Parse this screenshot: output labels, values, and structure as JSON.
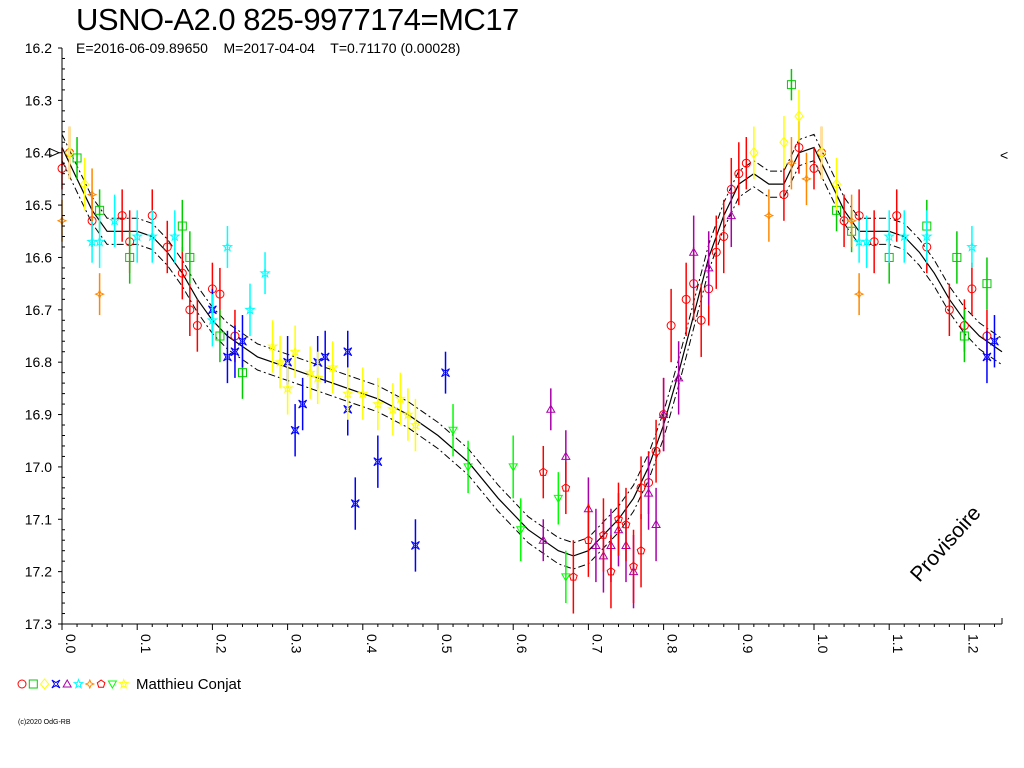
{
  "title": "USNO-A2.0 825-9977174=MC17",
  "subtitle": "E=2016-06-09.89650    M=2017-04-04    T=0.71170 (0.00028)",
  "legend": {
    "observer": "Matthieu Conjat",
    "symbols": [
      {
        "shape": "circle",
        "color": "#ff0000"
      },
      {
        "shape": "square",
        "color": "#00cc00"
      },
      {
        "shape": "diamond",
        "color": "#ffff00"
      },
      {
        "shape": "star4",
        "color": "#0000ff"
      },
      {
        "shape": "triangle",
        "color": "#aa00aa"
      },
      {
        "shape": "star",
        "color": "#00ffff"
      },
      {
        "shape": "cross",
        "color": "#ff8800"
      },
      {
        "shape": "pentagon",
        "color": "#ff0000"
      },
      {
        "shape": "triangle-down",
        "color": "#00ff00"
      },
      {
        "shape": "star",
        "color": "#ffff00"
      }
    ]
  },
  "watermark": "Provisoire",
  "copyright": "(c)2020 OdG-RB",
  "side_mark": "<",
  "chart_data": {
    "type": "scatter",
    "title": "USNO-A2.0 825-9977174=MC17",
    "x_ticks": [
      "0.0",
      "0.1",
      "0.2",
      "0.3",
      "0.4",
      "0.5",
      "0.6",
      "0.7",
      "0.8",
      "0.9",
      "1.0",
      "1.1",
      "1.2"
    ],
    "y_ticks": [
      "16.2",
      "16.3",
      "16.4",
      "16.5",
      "16.6",
      "16.7",
      "16.8",
      "16.9",
      "17.0",
      "17.1",
      "17.2",
      "17.3"
    ],
    "xlim": [
      0.0,
      1.25
    ],
    "ylim": [
      17.3,
      16.2
    ],
    "y_inverted": true,
    "fit_curve": {
      "phase": [
        0.0,
        0.02,
        0.04,
        0.06,
        0.08,
        0.1,
        0.12,
        0.14,
        0.16,
        0.18,
        0.2,
        0.22,
        0.24,
        0.26,
        0.28,
        0.3,
        0.34,
        0.38,
        0.42,
        0.46,
        0.5,
        0.54,
        0.58,
        0.62,
        0.66,
        0.68,
        0.7,
        0.72,
        0.74,
        0.76,
        0.78,
        0.8,
        0.82,
        0.84,
        0.86,
        0.88,
        0.9,
        0.92,
        0.94,
        0.96,
        0.98,
        1.0,
        1.02,
        1.04,
        1.06,
        1.08,
        1.1,
        1.12,
        1.14,
        1.16,
        1.18,
        1.2,
        1.22,
        1.25
      ],
      "mag": [
        16.39,
        16.45,
        16.51,
        16.55,
        16.55,
        16.55,
        16.56,
        16.59,
        16.63,
        16.68,
        16.72,
        16.75,
        16.77,
        16.79,
        16.8,
        16.81,
        16.83,
        16.85,
        16.87,
        16.9,
        16.94,
        16.99,
        17.06,
        17.12,
        17.16,
        17.17,
        17.16,
        17.13,
        17.1,
        17.06,
        17.0,
        16.92,
        16.82,
        16.71,
        16.6,
        16.52,
        16.46,
        16.44,
        16.46,
        16.46,
        16.4,
        16.39,
        16.45,
        16.51,
        16.55,
        16.55,
        16.55,
        16.56,
        16.59,
        16.63,
        16.68,
        16.72,
        16.75,
        16.78
      ],
      "band_offset": 0.025
    },
    "series": [
      {
        "symbol": "circle",
        "color": "#ff0000",
        "x": [
          0.0,
          0.01,
          0.04,
          0.08,
          0.09,
          0.12,
          0.14,
          0.16,
          0.17,
          0.18,
          0.2,
          0.21,
          0.23,
          0.77,
          0.78,
          0.79,
          0.8,
          0.81,
          0.83,
          0.84,
          0.85,
          0.86,
          0.87,
          0.88,
          0.89,
          0.9,
          0.91,
          0.96,
          0.98,
          1.0,
          1.01,
          1.04,
          1.06,
          1.08,
          1.11,
          1.15,
          1.18,
          1.2,
          1.21,
          1.23
        ],
        "y": [
          16.43,
          16.4,
          16.53,
          16.52,
          16.57,
          16.52,
          16.58,
          16.63,
          16.7,
          16.73,
          16.66,
          16.67,
          16.75,
          17.04,
          17.03,
          16.97,
          16.9,
          16.73,
          16.68,
          16.65,
          16.72,
          16.66,
          16.59,
          16.56,
          16.47,
          16.44,
          16.42,
          16.48,
          16.39,
          16.43,
          16.4,
          16.53,
          16.52,
          16.57,
          16.52,
          16.58,
          16.7,
          16.73,
          16.66,
          16.75
        ],
        "yerr": [
          0.04,
          0.05,
          0.05,
          0.05,
          0.06,
          0.05,
          0.05,
          0.05,
          0.05,
          0.05,
          0.05,
          0.05,
          0.05,
          0.06,
          0.06,
          0.06,
          0.07,
          0.07,
          0.07,
          0.07,
          0.07,
          0.07,
          0.07,
          0.07,
          0.06,
          0.06,
          0.05,
          0.05,
          0.05,
          0.04,
          0.05,
          0.05,
          0.05,
          0.06,
          0.05,
          0.05,
          0.05,
          0.05,
          0.05,
          0.05
        ]
      },
      {
        "symbol": "square",
        "color": "#00cc00",
        "x": [
          0.02,
          0.05,
          0.09,
          0.16,
          0.17,
          0.21,
          0.24,
          0.97,
          1.03,
          1.05,
          1.1,
          1.15,
          1.19,
          1.2,
          1.23
        ],
        "y": [
          16.41,
          16.51,
          16.6,
          16.54,
          16.6,
          16.75,
          16.82,
          16.27,
          16.51,
          16.55,
          16.6,
          16.54,
          16.6,
          16.75,
          16.65
        ],
        "yerr": [
          0.04,
          0.04,
          0.05,
          0.05,
          0.05,
          0.05,
          0.05,
          0.03,
          0.04,
          0.04,
          0.05,
          0.05,
          0.05,
          0.05,
          0.05
        ]
      },
      {
        "symbol": "diamond",
        "color": "#ffff00",
        "x": [
          0.01,
          0.03,
          0.92,
          0.96,
          0.98,
          1.01,
          1.03
        ],
        "y": [
          16.4,
          16.46,
          16.4,
          16.38,
          16.33,
          16.4,
          16.46
        ],
        "yerr": [
          0.05,
          0.05,
          0.05,
          0.05,
          0.05,
          0.05,
          0.05
        ]
      },
      {
        "symbol": "star4",
        "color": "#0000ff",
        "x": [
          0.2,
          0.22,
          0.23,
          0.24,
          0.3,
          0.31,
          0.32,
          0.34,
          0.35,
          0.38,
          0.38,
          0.39,
          0.42,
          0.47,
          0.51,
          1.23,
          1.24
        ],
        "y": [
          16.7,
          16.79,
          16.78,
          16.76,
          16.8,
          16.93,
          16.88,
          16.8,
          16.79,
          16.78,
          16.89,
          17.07,
          16.99,
          17.15,
          16.82,
          16.79,
          16.76
        ],
        "yerr": [
          0.04,
          0.05,
          0.05,
          0.05,
          0.05,
          0.05,
          0.05,
          0.05,
          0.05,
          0.04,
          0.05,
          0.05,
          0.05,
          0.05,
          0.04,
          0.05,
          0.05
        ]
      },
      {
        "symbol": "triangle",
        "color": "#aa00aa",
        "x": [
          0.64,
          0.65,
          0.67,
          0.7,
          0.71,
          0.72,
          0.73,
          0.74,
          0.75,
          0.76,
          0.78,
          0.79,
          0.8,
          0.82,
          0.84,
          0.86,
          0.89
        ],
        "y": [
          17.14,
          16.89,
          16.98,
          17.08,
          17.15,
          17.17,
          17.15,
          17.12,
          17.15,
          17.2,
          17.05,
          17.11,
          16.9,
          16.83,
          16.59,
          16.62,
          16.52
        ],
        "yerr": [
          0.04,
          0.04,
          0.05,
          0.06,
          0.07,
          0.07,
          0.07,
          0.07,
          0.07,
          0.07,
          0.07,
          0.07,
          0.07,
          0.07,
          0.07,
          0.07,
          0.06
        ]
      },
      {
        "symbol": "star",
        "color": "#00ffff",
        "x": [
          0.04,
          0.05,
          0.07,
          0.1,
          0.12,
          0.15,
          0.2,
          0.22,
          0.25,
          0.27,
          1.06,
          1.07,
          1.1,
          1.12,
          1.15,
          1.21
        ],
        "y": [
          16.57,
          16.57,
          16.53,
          16.56,
          16.56,
          16.56,
          16.72,
          16.58,
          16.7,
          16.63,
          16.57,
          16.57,
          16.56,
          16.56,
          16.56,
          16.58
        ],
        "yerr": [
          0.04,
          0.05,
          0.05,
          0.05,
          0.05,
          0.05,
          0.05,
          0.04,
          0.05,
          0.04,
          0.04,
          0.05,
          0.05,
          0.05,
          0.05,
          0.04
        ]
      },
      {
        "symbol": "cross",
        "color": "#ff8800",
        "x": [
          0.0,
          0.04,
          0.05,
          0.94,
          0.97,
          0.99,
          1.05,
          1.06
        ],
        "y": [
          16.53,
          16.48,
          16.67,
          16.52,
          16.42,
          16.45,
          16.53,
          16.67
        ],
        "yerr": [
          0.04,
          0.05,
          0.04,
          0.05,
          0.05,
          0.05,
          0.05,
          0.04
        ]
      },
      {
        "symbol": "pentagon",
        "color": "#ff0000",
        "x": [
          0.64,
          0.67,
          0.68,
          0.7,
          0.72,
          0.73,
          0.74,
          0.75,
          0.76,
          0.77
        ],
        "y": [
          17.01,
          17.04,
          17.21,
          17.14,
          17.13,
          17.2,
          17.1,
          17.11,
          17.19,
          17.16
        ],
        "yerr": [
          0.05,
          0.05,
          0.07,
          0.07,
          0.07,
          0.07,
          0.07,
          0.07,
          0.07,
          0.07
        ]
      },
      {
        "symbol": "triangle-down",
        "color": "#00ff00",
        "x": [
          0.52,
          0.54,
          0.6,
          0.61,
          0.66,
          0.67
        ],
        "y": [
          16.93,
          17.0,
          17.0,
          17.12,
          17.06,
          17.21
        ],
        "yerr": [
          0.05,
          0.05,
          0.06,
          0.06,
          0.05,
          0.05
        ]
      },
      {
        "symbol": "star",
        "color": "#ffff00",
        "x": [
          0.28,
          0.29,
          0.3,
          0.31,
          0.33,
          0.34,
          0.36,
          0.38,
          0.4,
          0.42,
          0.44,
          0.45,
          0.46,
          0.47
        ],
        "y": [
          16.77,
          16.8,
          16.85,
          16.78,
          16.82,
          16.83,
          16.81,
          16.86,
          16.86,
          16.88,
          16.89,
          16.87,
          16.9,
          16.92
        ],
        "yerr": [
          0.05,
          0.05,
          0.05,
          0.05,
          0.05,
          0.05,
          0.05,
          0.05,
          0.05,
          0.05,
          0.05,
          0.05,
          0.05,
          0.05
        ]
      }
    ]
  }
}
